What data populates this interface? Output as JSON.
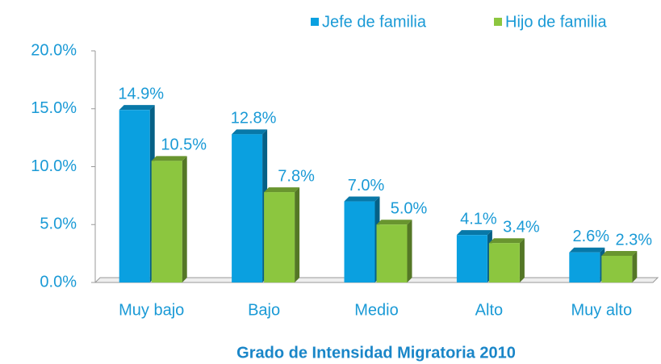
{
  "chart_data": {
    "type": "bar3d",
    "x_label": "Grado de Intensidad Migratoria 2010",
    "categories": [
      "Muy bajo",
      "Bajo",
      "Medio",
      "Alto",
      "Muy alto"
    ],
    "series": [
      {
        "name": "Jefe de familia",
        "color": "#0aa0e0",
        "values": [
          14.9,
          12.8,
          7.0,
          4.1,
          2.6
        ],
        "value_labels": [
          "14.9%",
          "12.8%",
          "7.0%",
          "4.1%",
          "2.6%"
        ]
      },
      {
        "name": "Hijo de familia",
        "color": "#8cc63f",
        "values": [
          10.5,
          7.8,
          5.0,
          3.4,
          2.3
        ],
        "value_labels": [
          "10.5%",
          "7.8%",
          "5.0%",
          "3.4%",
          "2.3%"
        ]
      }
    ],
    "ylim": [
      0,
      20
    ],
    "yticks": [
      {
        "value": 0,
        "label": "0.0%"
      },
      {
        "value": 5,
        "label": "5.0%"
      },
      {
        "value": 10,
        "label": "10.0%"
      },
      {
        "value": 15,
        "label": "15.0%"
      },
      {
        "value": 20,
        "label": "20.0%"
      }
    ],
    "legend": "top-right"
  }
}
